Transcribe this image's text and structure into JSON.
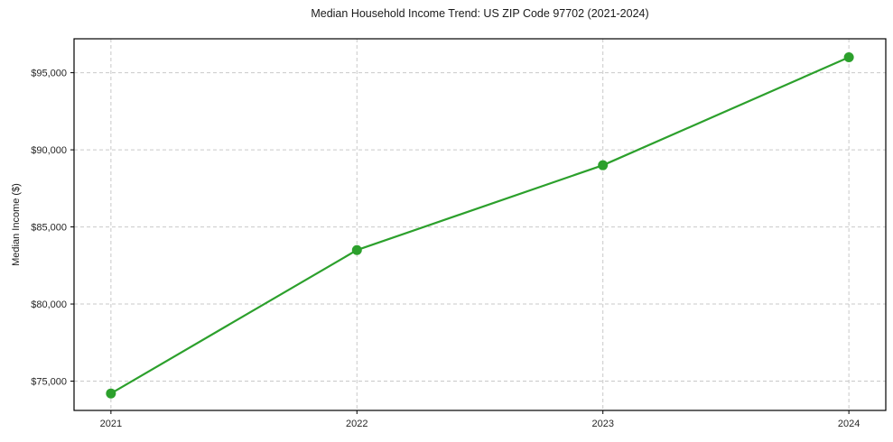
{
  "chart_data": {
    "type": "line",
    "title": "Median Household Income Trend: US ZIP Code 97702 (2021-2024)",
    "xlabel": "",
    "ylabel": "Median Income ($)",
    "categories": [
      "2021",
      "2022",
      "2023",
      "2024"
    ],
    "series": [
      {
        "name": "Median Household Income",
        "values": [
          74200,
          83500,
          89000,
          96000
        ],
        "color": "#2ca02c",
        "marker": "circle"
      }
    ],
    "yticks": [
      {
        "value": 75000,
        "label": "$75,000"
      },
      {
        "value": 80000,
        "label": "$80,000"
      },
      {
        "value": 85000,
        "label": "$85,000"
      },
      {
        "value": 90000,
        "label": "$90,000"
      },
      {
        "value": 95000,
        "label": "$95,000"
      }
    ],
    "ylim": [
      73100,
      97200
    ],
    "xlim": [
      -0.15,
      3.15
    ],
    "grid": "dashed-both-axes",
    "legend": "none"
  },
  "colors": {
    "line": "#2ca02c",
    "grid": "#c9c9c9",
    "axis": "#000000",
    "tick_text": "#262626",
    "background": "#ffffff"
  }
}
